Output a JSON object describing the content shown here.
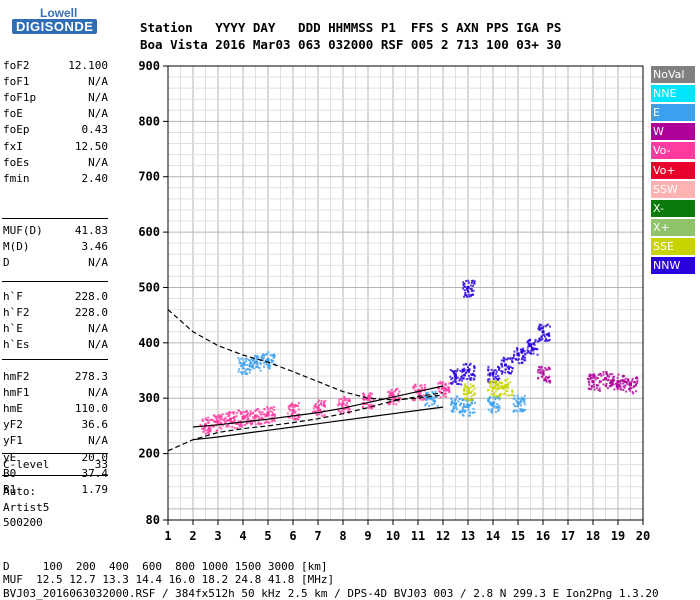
{
  "logo": {
    "brand": "Lowell",
    "product": "DIGISONDE"
  },
  "header": {
    "row1": "Station   YYYY DAY   DDD HHMMSS P1  FFS S AXN PPS IGA PS",
    "row2": "Boa Vista 2016 Mar03 063 032000 RSF 005 2 713 100 03+ 30"
  },
  "params": {
    "group1": [
      {
        "label": "foF2",
        "value": "12.100"
      },
      {
        "label": "foF1",
        "value": "N/A"
      },
      {
        "label": "foF1p",
        "value": "N/A"
      },
      {
        "label": "foE",
        "value": "N/A"
      },
      {
        "label": "foEp",
        "value": "0.43"
      },
      {
        "label": "fxI",
        "value": "12.50"
      },
      {
        "label": "foEs",
        "value": "N/A"
      },
      {
        "label": "fmin",
        "value": "2.40"
      }
    ],
    "group2": [
      {
        "label": "MUF(D)",
        "value": "41.83"
      },
      {
        "label": "M(D)",
        "value": "3.46"
      },
      {
        "label": "D",
        "value": "N/A"
      }
    ],
    "group3": [
      {
        "label": "h`F",
        "value": "228.0"
      },
      {
        "label": "h`F2",
        "value": "228.0"
      },
      {
        "label": "h`E",
        "value": "N/A"
      },
      {
        "label": "h`Es",
        "value": "N/A"
      }
    ],
    "group4": [
      {
        "label": "hmF2",
        "value": "278.3"
      },
      {
        "label": "hmF1",
        "value": "N/A"
      },
      {
        "label": "hmE",
        "value": "110.0"
      },
      {
        "label": "yF2",
        "value": "36.6"
      },
      {
        "label": "yF1",
        "value": "N/A"
      },
      {
        "label": "yE",
        "value": "20.0"
      },
      {
        "label": "B0",
        "value": "37.4"
      },
      {
        "label": "B1",
        "value": "1.79"
      }
    ],
    "group5": [
      {
        "label": "C-level",
        "value": "33"
      }
    ]
  },
  "misc": {
    "line1": "Auto:",
    "line2": "Artist5",
    "line3": "500200"
  },
  "footer": {
    "line1": "D     100  200  400  600  800 1000 1500 3000 [km]",
    "line2": "MUF  12.5 12.7 13.3 14.4 16.0 18.2 24.8 41.8 [MHz]",
    "line3": "BVJ03_2016063032000.RSF / 384fx512h 50 kHz 2.5 km / DPS-4D BVJ03 003 / 2.8 N 299.3 E Ion2Png 1.3.20"
  },
  "legend": [
    {
      "label": "NoVal",
      "color": "#808080",
      "text_color": "#ffffff"
    },
    {
      "label": "NNE",
      "color": "#00e5ff",
      "text_color": "#ffffff"
    },
    {
      "label": "E",
      "color": "#3aa0f0",
      "text_color": "#ffffff"
    },
    {
      "label": "W",
      "color": "#b0009a",
      "text_color": "#ffffff"
    },
    {
      "label": "Vo-",
      "color": "#ff3aa0",
      "text_color": "#ffffff"
    },
    {
      "label": "Vo+",
      "color": "#e8002a",
      "text_color": "#ffffff"
    },
    {
      "label": "SSW",
      "color": "#ffb2b2",
      "text_color": "#ffffff"
    },
    {
      "label": "X-",
      "color": "#0a7a0a",
      "text_color": "#ffffff"
    },
    {
      "label": "X+",
      "color": "#8fc46a",
      "text_color": "#ffffff"
    },
    {
      "label": "SSE",
      "color": "#c8d400",
      "text_color": "#ffffff"
    },
    {
      "label": "NNW",
      "color": "#2a00e0",
      "text_color": "#ffffff"
    }
  ],
  "chart_data": {
    "type": "scatter",
    "xlim": [
      1,
      20
    ],
    "ylim": [
      80,
      900
    ],
    "x_ticks": [
      "1",
      "2",
      "3",
      "4",
      "5",
      "6",
      "7",
      "8",
      "9",
      "10",
      "11",
      "12",
      "13",
      "14",
      "15",
      "16",
      "17",
      "18",
      "19",
      "20"
    ],
    "y_ticks": [
      "80",
      "200",
      "300",
      "400",
      "500",
      "600",
      "700",
      "800",
      "900"
    ],
    "x_minor_step": 0.5,
    "y_minor_step": 20,
    "grid": true,
    "series": [
      {
        "name": "Vo-",
        "points": [
          [
            2.5,
            252
          ],
          [
            3,
            258
          ],
          [
            3.5,
            262
          ],
          [
            4,
            265
          ],
          [
            4.5,
            268
          ],
          [
            5,
            272
          ],
          [
            6,
            278
          ],
          [
            7,
            283
          ],
          [
            8,
            290
          ],
          [
            9,
            298
          ],
          [
            10,
            305
          ],
          [
            11,
            312
          ],
          [
            12,
            318
          ]
        ]
      },
      {
        "name": "NNW",
        "points": [
          [
            12.5,
            340
          ],
          [
            13,
            350
          ],
          [
            14,
            345
          ],
          [
            14.5,
            360
          ],
          [
            15,
            380
          ],
          [
            15.5,
            395
          ],
          [
            16,
            420
          ],
          [
            13,
            500
          ]
        ]
      },
      {
        "name": "E",
        "points": [
          [
            4,
            360
          ],
          [
            4.5,
            365
          ],
          [
            5,
            370
          ],
          [
            11.5,
            300
          ],
          [
            12.5,
            290
          ],
          [
            13,
            285
          ],
          [
            14,
            290
          ],
          [
            15,
            292
          ]
        ]
      },
      {
        "name": "W",
        "points": [
          [
            18,
            330
          ],
          [
            18.5,
            335
          ],
          [
            19,
            330
          ],
          [
            19.5,
            325
          ],
          [
            16,
            345
          ]
        ]
      },
      {
        "name": "SSE",
        "points": [
          [
            14,
            318
          ],
          [
            14.5,
            322
          ],
          [
            13,
            312
          ]
        ]
      }
    ],
    "curves": [
      {
        "name": "profile-lower",
        "style": "solid",
        "points": [
          [
            2,
            225
          ],
          [
            3,
            230
          ],
          [
            4,
            236
          ],
          [
            5,
            242
          ],
          [
            6,
            248
          ],
          [
            7,
            254
          ],
          [
            8,
            260
          ],
          [
            9,
            266
          ],
          [
            10,
            272
          ],
          [
            11,
            278
          ],
          [
            12,
            284
          ]
        ]
      },
      {
        "name": "profile-upper",
        "style": "solid",
        "points": [
          [
            2,
            248
          ],
          [
            3,
            252
          ],
          [
            4,
            257
          ],
          [
            5,
            262
          ],
          [
            6,
            268
          ],
          [
            7,
            274
          ],
          [
            8,
            282
          ],
          [
            9,
            292
          ],
          [
            10,
            302
          ],
          [
            11,
            312
          ],
          [
            12,
            322
          ]
        ]
      },
      {
        "name": "dashed-x",
        "style": "dashed",
        "points": [
          [
            1,
            460
          ],
          [
            2,
            420
          ],
          [
            3,
            395
          ],
          [
            4,
            378
          ],
          [
            5,
            365
          ],
          [
            6,
            348
          ],
          [
            7,
            330
          ],
          [
            8,
            312
          ],
          [
            9,
            300
          ],
          [
            10,
            297
          ],
          [
            11,
            300
          ],
          [
            12,
            306
          ]
        ]
      },
      {
        "name": "dashed-o",
        "style": "dashed",
        "points": [
          [
            1,
            205
          ],
          [
            2,
            225
          ],
          [
            3,
            238
          ],
          [
            4,
            245
          ],
          [
            5,
            250
          ],
          [
            6,
            256
          ],
          [
            7,
            263
          ],
          [
            8,
            272
          ],
          [
            9,
            283
          ],
          [
            10,
            295
          ],
          [
            11,
            303
          ],
          [
            12,
            310
          ]
        ]
      }
    ]
  }
}
